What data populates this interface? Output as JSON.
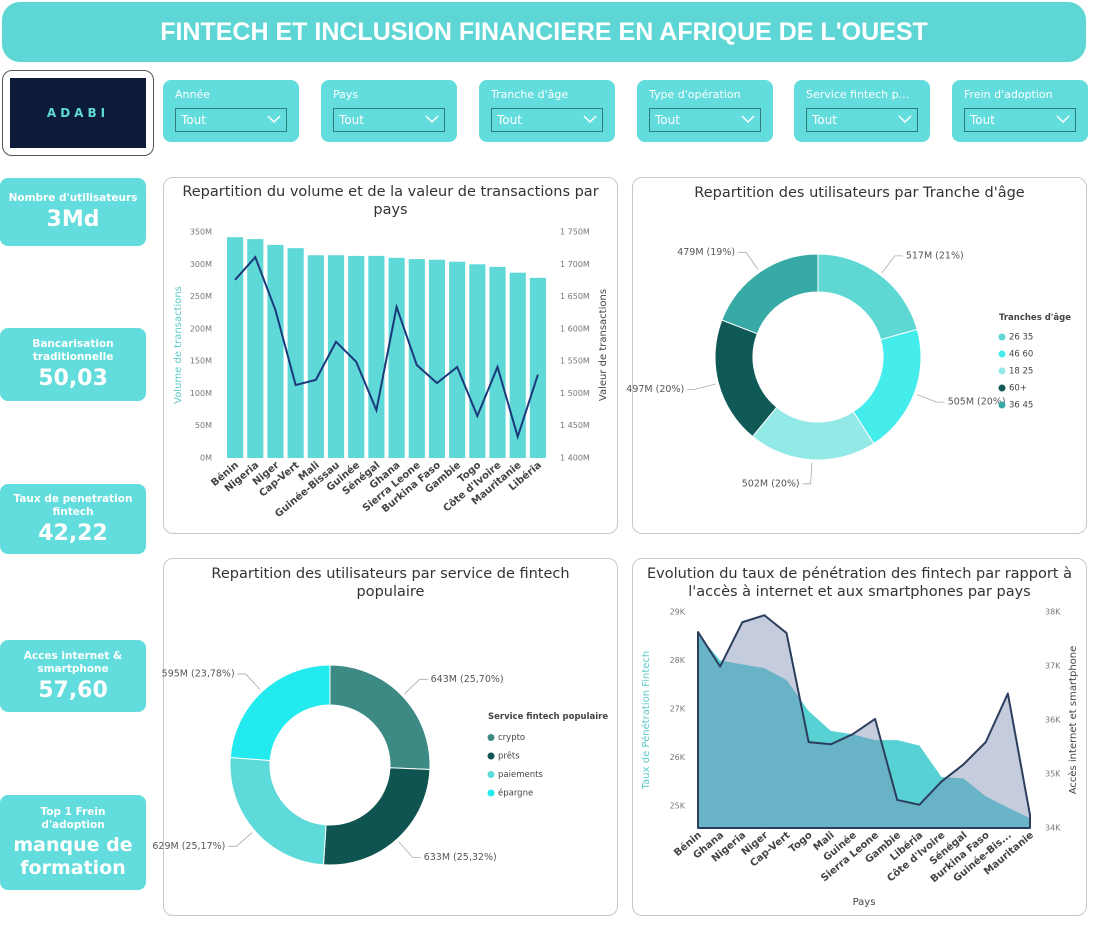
{
  "header": {
    "title": "FINTECH ET INCLUSION FINANCIERE EN AFRIQUE DE L'OUEST"
  },
  "logo": {
    "text": "ADABI"
  },
  "filters": [
    {
      "label": "Année",
      "value": "Tout"
    },
    {
      "label": "Pays",
      "value": "Tout"
    },
    {
      "label": "Tranche d'âge",
      "value": "Tout"
    },
    {
      "label": "Type d'opération",
      "value": "Tout"
    },
    {
      "label": "Service fintech p...",
      "value": "Tout"
    },
    {
      "label": "Frein d'adoption",
      "value": "Tout"
    }
  ],
  "kpis": [
    {
      "label": "Nombre d'utilisateurs",
      "value": "3Md"
    },
    {
      "label": "Bancarisation traditionnelle",
      "value": "50,03"
    },
    {
      "label": "Taux de penetration fintech",
      "value": "42,22"
    },
    {
      "label": "Acces internet & smartphone",
      "value": "57,60"
    },
    {
      "label": "Top 1 Frein d'adoption",
      "value": "manque de formation"
    }
  ],
  "chart_data": [
    {
      "type": "combo",
      "title": "Repartition du volume et de la valeur de transactions par pays",
      "categories": [
        "Bénin",
        "Nigeria",
        "Niger",
        "Cap-Vert",
        "Mali",
        "Guinée-Bissau",
        "Guinée",
        "Sénégal",
        "Ghana",
        "Sierra Leone",
        "Burkina Faso",
        "Gambie",
        "Togo",
        "Côte d'Ivoire",
        "Mauritanie",
        "Libéria"
      ],
      "series": [
        {
          "type": "bar",
          "color": "#5fd8d8",
          "values": [
            342,
            339,
            330,
            325,
            314,
            314,
            313,
            313,
            310,
            308,
            307,
            304,
            300,
            296,
            287,
            279
          ]
        },
        {
          "type": "line",
          "axis": "y2",
          "color": "#1a3a7a",
          "values": [
            1676,
            1711,
            1629,
            1513,
            1521,
            1580,
            1549,
            1474,
            1634,
            1544,
            1516,
            1541,
            1465,
            1541,
            1433,
            1529
          ]
        }
      ],
      "ylabel": "Volume de transactions",
      "y2label": "Valeur de transactions",
      "ylim": [
        0,
        350
      ],
      "yticks": [
        {
          "value": 0,
          "label": "0M"
        },
        {
          "value": 50,
          "label": "50M"
        },
        {
          "value": 100,
          "label": "100M"
        },
        {
          "value": 150,
          "label": "150M"
        },
        {
          "value": 200,
          "label": "200M"
        },
        {
          "value": 250,
          "label": "250M"
        },
        {
          "value": 300,
          "label": "300M"
        },
        {
          "value": 350,
          "label": "350M"
        }
      ],
      "y2lim": [
        1400,
        1750
      ],
      "y2ticks": [
        {
          "value": 1400,
          "label": "1 400M"
        },
        {
          "value": 1450,
          "label": "1 450M"
        },
        {
          "value": 1500,
          "label": "1 500M"
        },
        {
          "value": 1550,
          "label": "1 550M"
        },
        {
          "value": 1600,
          "label": "1 600M"
        },
        {
          "value": 1650,
          "label": "1 650M"
        },
        {
          "value": 1700,
          "label": "1 700M"
        },
        {
          "value": 1750,
          "label": "1 750M"
        }
      ],
      "grid": false
    },
    {
      "type": "pie",
      "donut": true,
      "title": "Repartition des utilisateurs par Tranche d'âge",
      "legend_title": "Tranches d'âge",
      "categories": [
        "26 35",
        "46 60",
        "18 25",
        "60+",
        "36 45"
      ],
      "values": [
        517,
        505,
        502,
        497,
        479
      ],
      "value_labels": [
        "517M (21%)",
        "505M (20%)",
        "502M (20%)",
        "497M (20%)",
        "479M (19%)"
      ],
      "colors": [
        "#5fd8d4",
        "#45ecec",
        "#93e9e5",
        "#0f5956",
        "#38aaa6"
      ]
    },
    {
      "type": "pie",
      "donut": true,
      "title": "Repartition des utilisateurs par service de fintech populaire",
      "legend_title": "Service fintech populaire",
      "categories": [
        "crypto",
        "prêts",
        "paiements",
        "épargne"
      ],
      "values": [
        643,
        633,
        629,
        595
      ],
      "value_labels": [
        "643M (25,70%)",
        "633M (25,32%)",
        "629M (25,17%)",
        "595M (23,78%)"
      ],
      "colors": [
        "#3d8a84",
        "#0f5450",
        "#5fdada",
        "#22eaee"
      ]
    },
    {
      "type": "area",
      "title": "Evolution du taux de pénétration des fintech par rapport à l'accès à internet et aux smartphones par pays",
      "categories": [
        "Bénin",
        "Ghana",
        "Nigeria",
        "Niger",
        "Cap-Vert",
        "Togo",
        "Mali",
        "Guinée",
        "Sierra Leone",
        "Gambie",
        "Libéria",
        "Côte d'Ivoire",
        "Sénégal",
        "Burkina Faso",
        "Guinée-Bis...",
        "Mauritanie"
      ],
      "series": [
        {
          "color": "#4fcfd2",
          "values": [
            28.55,
            28.0,
            27.92,
            27.84,
            27.6,
            26.96,
            26.55,
            26.48,
            26.36,
            26.36,
            26.25,
            25.6,
            25.57,
            25.2,
            24.97,
            24.75
          ]
        },
        {
          "axis": "y2",
          "color": "#2c3e5e",
          "values": [
            37.63,
            36.99,
            37.81,
            37.94,
            37.61,
            35.59,
            35.55,
            35.74,
            36.02,
            34.52,
            34.43,
            34.86,
            35.18,
            35.59,
            36.49,
            34.24
          ]
        }
      ],
      "xlabel": "Pays",
      "ylabel": "Taux de Pénétration Fintech",
      "y2label": "Accès internet et smartphone",
      "ylim": [
        24.55,
        29
      ],
      "yticks": [
        {
          "value": 25,
          "label": "25K"
        },
        {
          "value": 26,
          "label": "26K"
        },
        {
          "value": 27,
          "label": "27K"
        },
        {
          "value": 28,
          "label": "28K"
        },
        {
          "value": 29,
          "label": "29K"
        }
      ],
      "y2lim": [
        34,
        38
      ],
      "y2ticks": [
        {
          "value": 34,
          "label": "34K"
        },
        {
          "value": 35,
          "label": "35K"
        },
        {
          "value": 36,
          "label": "36K"
        },
        {
          "value": 37,
          "label": "37K"
        },
        {
          "value": 38,
          "label": "38K"
        }
      ],
      "grid": false
    }
  ]
}
